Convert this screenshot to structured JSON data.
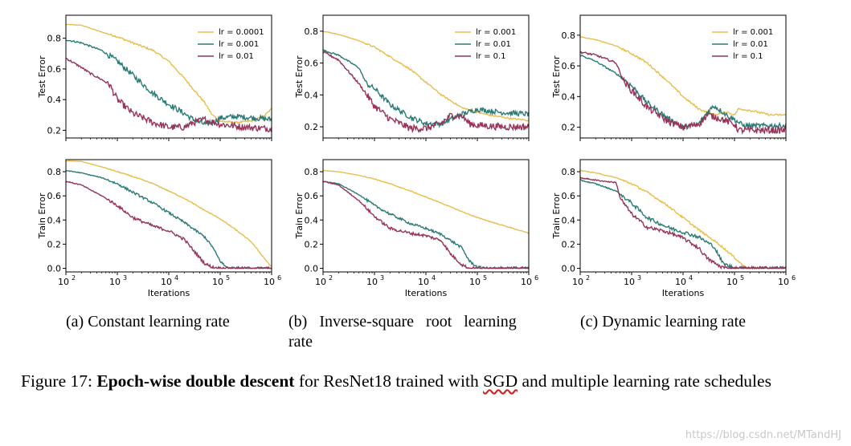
{
  "colors": {
    "lr_low": "#e9be4c",
    "lr_mid": "#2a7b77",
    "lr_high": "#973358"
  },
  "chart_data": [
    {
      "type": "line",
      "panel": "a-top",
      "ylabel": "Test Error",
      "xlabel": "",
      "xscale": "log",
      "xlim": [
        100,
        1000000
      ],
      "ylim": [
        0.15,
        0.95
      ],
      "yticks": [
        "0.2",
        "0.4",
        "0.6",
        "0.8"
      ],
      "legend_position": "top-right",
      "series": [
        {
          "name": "lr = 0.0001",
          "color_key": "lr_low",
          "noise": 0.006,
          "x": [
            100,
            200,
            500,
            1000,
            2000,
            5000,
            10000,
            20000,
            50000,
            70000,
            100000,
            200000,
            400000,
            700000,
            1000000
          ],
          "y": [
            0.89,
            0.885,
            0.84,
            0.81,
            0.77,
            0.72,
            0.65,
            0.54,
            0.38,
            0.3,
            0.26,
            0.25,
            0.26,
            0.29,
            0.34
          ]
        },
        {
          "name": "lr = 0.001",
          "color_key": "lr_mid",
          "noise": 0.018,
          "x": [
            100,
            200,
            500,
            1000,
            2000,
            5000,
            10000,
            20000,
            30000,
            50000,
            70000,
            100000,
            200000,
            500000,
            1000000
          ],
          "y": [
            0.79,
            0.77,
            0.72,
            0.65,
            0.56,
            0.44,
            0.37,
            0.31,
            0.27,
            0.24,
            0.25,
            0.28,
            0.29,
            0.28,
            0.27
          ]
        },
        {
          "name": "lr = 0.01",
          "color_key": "lr_high",
          "noise": 0.022,
          "x": [
            100,
            200,
            300,
            500,
            700,
            1000,
            2000,
            5000,
            10000,
            20000,
            30000,
            50000,
            100000,
            300000,
            1000000
          ],
          "y": [
            0.67,
            0.61,
            0.57,
            0.53,
            0.5,
            0.4,
            0.31,
            0.25,
            0.22,
            0.22,
            0.25,
            0.27,
            0.24,
            0.22,
            0.21
          ]
        }
      ]
    },
    {
      "type": "line",
      "panel": "b-top",
      "ylabel": "Test Error",
      "xlabel": "",
      "xscale": "log",
      "xlim": [
        100,
        1000000
      ],
      "ylim": [
        0.13,
        0.9
      ],
      "yticks": [
        "0.2",
        "0.4",
        "0.6",
        "0.8"
      ],
      "legend_position": "top-right",
      "series": [
        {
          "name": "lr = 0.001",
          "color_key": "lr_low",
          "noise": 0.005,
          "x": [
            100,
            200,
            500,
            1000,
            2000,
            5000,
            10000,
            20000,
            50000,
            100000,
            200000,
            500000,
            1000000
          ],
          "y": [
            0.8,
            0.78,
            0.74,
            0.7,
            0.64,
            0.56,
            0.48,
            0.4,
            0.32,
            0.29,
            0.27,
            0.25,
            0.24
          ]
        },
        {
          "name": "lr = 0.01",
          "color_key": "lr_mid",
          "noise": 0.016,
          "x": [
            100,
            200,
            500,
            700,
            1000,
            2000,
            5000,
            10000,
            20000,
            50000,
            100000,
            300000,
            1000000
          ],
          "y": [
            0.68,
            0.65,
            0.57,
            0.47,
            0.44,
            0.34,
            0.26,
            0.22,
            0.22,
            0.28,
            0.31,
            0.29,
            0.28
          ]
        },
        {
          "name": "lr = 0.1",
          "color_key": "lr_high",
          "noise": 0.022,
          "x": [
            100,
            200,
            500,
            1000,
            2000,
            5000,
            10000,
            20000,
            30000,
            50000,
            70000,
            100000,
            300000,
            1000000
          ],
          "y": [
            0.67,
            0.62,
            0.47,
            0.33,
            0.25,
            0.19,
            0.19,
            0.22,
            0.27,
            0.27,
            0.22,
            0.21,
            0.2,
            0.2
          ]
        }
      ]
    },
    {
      "type": "line",
      "panel": "c-top",
      "ylabel": "Test Error",
      "xlabel": "",
      "xscale": "log",
      "xlim": [
        100,
        1000000
      ],
      "ylim": [
        0.13,
        0.93
      ],
      "yticks": [
        "0.2",
        "0.4",
        "0.6",
        "0.8"
      ],
      "legend_position": "top-right",
      "series": [
        {
          "name": "lr = 0.001",
          "color_key": "lr_low",
          "noise": 0.006,
          "x": [
            100,
            200,
            500,
            1000,
            2000,
            5000,
            10000,
            20000,
            40000,
            70000,
            100000,
            120000,
            200000,
            500000,
            1000000
          ],
          "y": [
            0.79,
            0.77,
            0.73,
            0.68,
            0.62,
            0.5,
            0.4,
            0.32,
            0.28,
            0.3,
            0.28,
            0.32,
            0.31,
            0.28,
            0.28
          ]
        },
        {
          "name": "lr = 0.01",
          "color_key": "lr_mid",
          "noise": 0.016,
          "x": [
            100,
            200,
            500,
            1000,
            2000,
            5000,
            10000,
            20000,
            30000,
            40000,
            70000,
            100000,
            150000,
            300000,
            1000000
          ],
          "y": [
            0.67,
            0.63,
            0.55,
            0.47,
            0.36,
            0.26,
            0.2,
            0.22,
            0.3,
            0.34,
            0.28,
            0.25,
            0.21,
            0.21,
            0.21
          ]
        },
        {
          "name": "lr = 0.1",
          "color_key": "lr_high",
          "noise": 0.022,
          "x": [
            100,
            200,
            500,
            700,
            1000,
            2000,
            5000,
            10000,
            20000,
            30000,
            50000,
            100000,
            120000,
            300000,
            1000000
          ],
          "y": [
            0.69,
            0.67,
            0.62,
            0.5,
            0.44,
            0.33,
            0.24,
            0.2,
            0.22,
            0.28,
            0.26,
            0.22,
            0.18,
            0.18,
            0.18
          ]
        }
      ]
    },
    {
      "type": "line",
      "panel": "a-bottom",
      "ylabel": "Train Error",
      "xlabel": "Iterations",
      "xscale": "log",
      "xlim": [
        100,
        1000000
      ],
      "ylim": [
        -0.03,
        0.9
      ],
      "yticks": [
        "0.0",
        "0.2",
        "0.4",
        "0.6",
        "0.8"
      ],
      "xticks": [
        "10",
        "10",
        "10",
        "10",
        "10"
      ],
      "xtick_exponents": [
        "2",
        "3",
        "4",
        "5",
        "6"
      ],
      "series": [
        {
          "name": "lr = 0.0001",
          "color_key": "lr_low",
          "noise": 0.004,
          "x": [
            100,
            200,
            500,
            1000,
            2000,
            5000,
            10000,
            20000,
            50000,
            100000,
            200000,
            400000,
            700000,
            1000000
          ],
          "y": [
            0.89,
            0.885,
            0.84,
            0.8,
            0.76,
            0.7,
            0.64,
            0.58,
            0.48,
            0.41,
            0.32,
            0.22,
            0.09,
            0.01
          ]
        },
        {
          "name": "lr = 0.001",
          "color_key": "lr_mid",
          "noise": 0.01,
          "x": [
            100,
            200,
            500,
            1000,
            2000,
            5000,
            10000,
            20000,
            50000,
            70000,
            100000,
            130000,
            200000,
            1000000
          ],
          "y": [
            0.81,
            0.79,
            0.75,
            0.7,
            0.63,
            0.54,
            0.46,
            0.38,
            0.26,
            0.18,
            0.06,
            0.01,
            0.0,
            0.0
          ]
        },
        {
          "name": "lr = 0.01",
          "color_key": "lr_high",
          "noise": 0.012,
          "x": [
            100,
            200,
            500,
            1000,
            2000,
            5000,
            10000,
            20000,
            30000,
            50000,
            70000,
            100000,
            1000000
          ],
          "y": [
            0.72,
            0.69,
            0.6,
            0.52,
            0.42,
            0.35,
            0.31,
            0.24,
            0.15,
            0.04,
            0.01,
            0.0,
            0.0
          ]
        }
      ]
    },
    {
      "type": "line",
      "panel": "b-bottom",
      "ylabel": "Train Error",
      "xlabel": "Iterations",
      "xscale": "log",
      "xlim": [
        100,
        1000000
      ],
      "ylim": [
        -0.03,
        0.9
      ],
      "yticks": [
        "0.0",
        "0.2",
        "0.4",
        "0.6",
        "0.8"
      ],
      "xticks": [
        "10",
        "10",
        "10",
        "10",
        "10"
      ],
      "xtick_exponents": [
        "2",
        "3",
        "4",
        "5",
        "6"
      ],
      "series": [
        {
          "name": "lr = 0.001",
          "color_key": "lr_low",
          "noise": 0.003,
          "x": [
            100,
            200,
            500,
            1000,
            2000,
            5000,
            10000,
            20000,
            50000,
            100000,
            200000,
            500000,
            1000000
          ],
          "y": [
            0.81,
            0.8,
            0.77,
            0.74,
            0.7,
            0.64,
            0.59,
            0.54,
            0.47,
            0.42,
            0.38,
            0.33,
            0.29
          ]
        },
        {
          "name": "lr = 0.01",
          "color_key": "lr_mid",
          "noise": 0.01,
          "x": [
            100,
            200,
            500,
            1000,
            2000,
            5000,
            10000,
            20000,
            50000,
            70000,
            100000,
            150000,
            300000,
            1000000
          ],
          "y": [
            0.72,
            0.7,
            0.61,
            0.52,
            0.45,
            0.37,
            0.33,
            0.28,
            0.17,
            0.06,
            0.01,
            0.0,
            0.0,
            0.0
          ]
        },
        {
          "name": "lr = 0.1",
          "color_key": "lr_high",
          "noise": 0.012,
          "x": [
            100,
            200,
            500,
            1000,
            2000,
            5000,
            10000,
            20000,
            30000,
            50000,
            70000,
            100000,
            1000000
          ],
          "y": [
            0.72,
            0.69,
            0.56,
            0.43,
            0.33,
            0.29,
            0.27,
            0.23,
            0.12,
            0.03,
            0.0,
            0.0,
            0.0
          ]
        }
      ]
    },
    {
      "type": "line",
      "panel": "c-bottom",
      "ylabel": "Train Error",
      "xlabel": "Iterations",
      "xscale": "log",
      "xlim": [
        100,
        1000000
      ],
      "ylim": [
        -0.03,
        0.9
      ],
      "yticks": [
        "0.0",
        "0.2",
        "0.4",
        "0.6",
        "0.8"
      ],
      "xticks": [
        "10",
        "10",
        "10",
        "10",
        "10"
      ],
      "xtick_exponents": [
        "2",
        "3",
        "4",
        "5",
        "6"
      ],
      "series": [
        {
          "name": "lr = 0.001",
          "color_key": "lr_low",
          "noise": 0.008,
          "x": [
            100,
            200,
            500,
            1000,
            2000,
            5000,
            10000,
            20000,
            50000,
            100000,
            150000,
            200000,
            1000000
          ],
          "y": [
            0.81,
            0.79,
            0.75,
            0.7,
            0.63,
            0.52,
            0.42,
            0.32,
            0.2,
            0.09,
            0.02,
            0.0,
            0.0
          ]
        },
        {
          "name": "lr = 0.01",
          "color_key": "lr_mid",
          "noise": 0.015,
          "x": [
            100,
            200,
            500,
            1000,
            2000,
            5000,
            10000,
            20000,
            40000,
            60000,
            100000,
            1000000
          ],
          "y": [
            0.73,
            0.7,
            0.64,
            0.54,
            0.42,
            0.34,
            0.3,
            0.26,
            0.18,
            0.04,
            0.0,
            0.0
          ]
        },
        {
          "name": "lr = 0.1",
          "color_key": "lr_high",
          "noise": 0.015,
          "x": [
            100,
            200,
            500,
            600,
            1000,
            2000,
            5000,
            10000,
            20000,
            30000,
            50000,
            70000,
            1000000
          ],
          "y": [
            0.75,
            0.73,
            0.71,
            0.58,
            0.45,
            0.34,
            0.3,
            0.25,
            0.17,
            0.08,
            0.02,
            0.0,
            0.0
          ]
        }
      ]
    }
  ],
  "subcaptions": {
    "a": "(a) Constant learning rate",
    "b_line1": "(b)   Inverse-square   root   learning",
    "b_line2": "rate",
    "c": "(c) Dynamic learning rate"
  },
  "caption": {
    "prefix": "Figure 17: ",
    "bold": "Epoch-wise double descent",
    "middle": " for ResNet18 trained with ",
    "underlined": "SGD",
    "suffix": " and multiple learning rate schedules"
  },
  "watermark": "https://blog.csdn.net/MTandHJ"
}
